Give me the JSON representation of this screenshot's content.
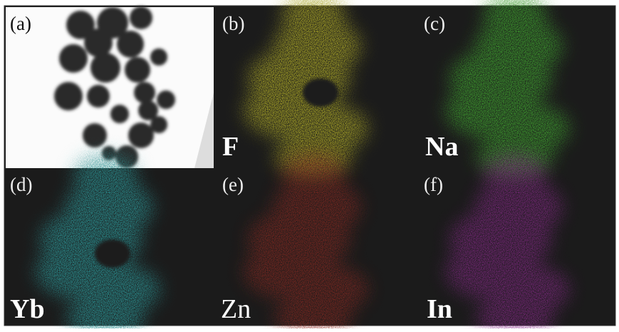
{
  "panels": [
    {
      "label": "(a)"
    },
    {
      "label": "(b)",
      "element": "F"
    },
    {
      "label": "(c)",
      "element": "Na"
    },
    {
      "label": "(d)",
      "element": "Yb"
    },
    {
      "label": "(e)",
      "element": "Zn"
    },
    {
      "label": "(f)",
      "element": "In"
    }
  ]
}
